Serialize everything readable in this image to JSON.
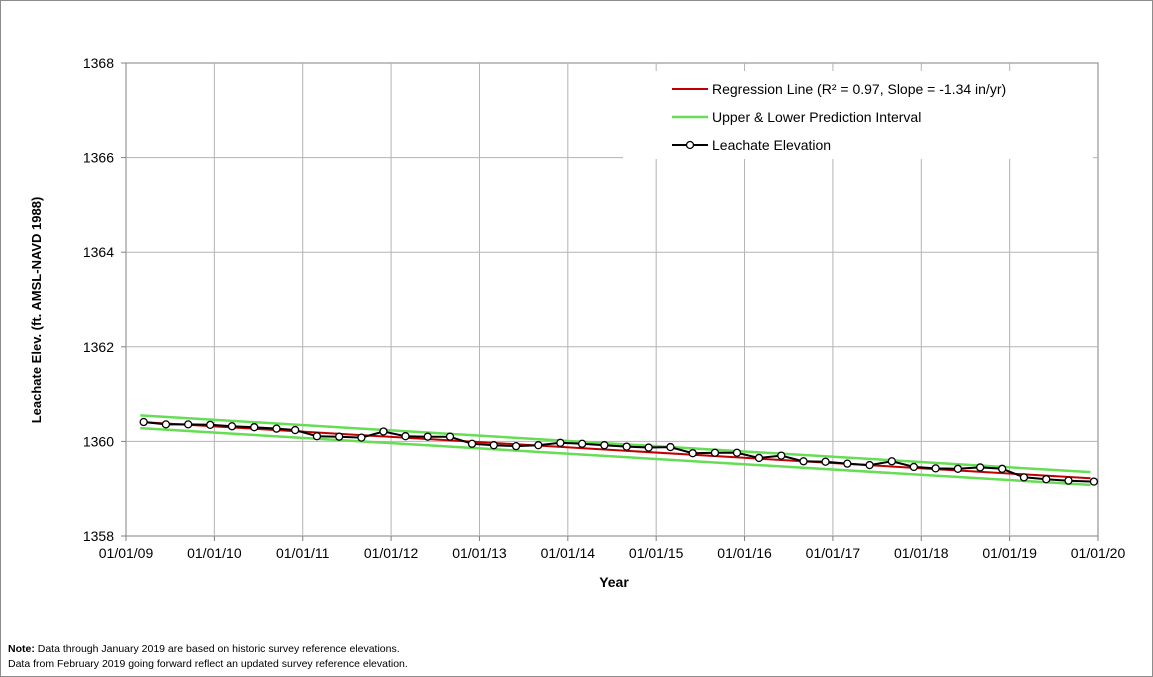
{
  "chart_data": {
    "type": "line",
    "xlabel": "Year",
    "ylabel": "Leachate Elev. (ft. AMSL-NAVD 1988)",
    "x_ticks": [
      "01/01/09",
      "01/01/10",
      "01/01/11",
      "01/01/12",
      "01/01/13",
      "01/01/14",
      "01/01/15",
      "01/01/16",
      "01/01/17",
      "01/01/18",
      "01/01/19",
      "01/01/20"
    ],
    "xlim": [
      "2009-01-01",
      "2020-01-01"
    ],
    "y_ticks": [
      1358,
      1360,
      1362,
      1364,
      1366,
      1368
    ],
    "ylim": [
      1358,
      1368
    ],
    "grid": true,
    "legend_position": "top-right",
    "legend": {
      "regression": "Regression Line (R² = 0.97, Slope = -1.34 in/yr)",
      "interval": "Upper & Lower Prediction Interval",
      "leachate": "Leachate Elevation"
    },
    "colors": {
      "regression": "#c00000",
      "interval": "#66dd55",
      "leachate": "#000000",
      "grid": "#b3b3b3",
      "axis": "#808080"
    },
    "series": [
      {
        "name": "Regression Line (R² = 0.97, Slope = -1.34 in/yr)",
        "x": [
          "2009-03-01",
          "2019-12-01"
        ],
        "y": [
          1360.41,
          1359.22
        ]
      },
      {
        "name": "Upper & Lower Prediction Interval",
        "upper": {
          "x": [
            "2009-03-01",
            "2019-12-01"
          ],
          "y": [
            1360.55,
            1359.35
          ]
        },
        "lower": {
          "x": [
            "2009-03-01",
            "2019-12-01"
          ],
          "y": [
            1360.28,
            1359.08
          ]
        }
      },
      {
        "name": "Leachate Elevation",
        "x": [
          "2009-03-15",
          "2009-06-15",
          "2009-09-15",
          "2009-12-15",
          "2010-03-15",
          "2010-06-15",
          "2010-09-15",
          "2010-12-01",
          "2011-03-01",
          "2011-06-01",
          "2011-09-01",
          "2011-12-01",
          "2012-03-01",
          "2012-06-01",
          "2012-09-01",
          "2012-12-01",
          "2013-03-01",
          "2013-06-01",
          "2013-09-01",
          "2013-12-01",
          "2014-03-01",
          "2014-06-01",
          "2014-09-01",
          "2014-12-01",
          "2015-03-01",
          "2015-06-01",
          "2015-09-01",
          "2015-12-01",
          "2016-03-01",
          "2016-06-01",
          "2016-09-01",
          "2016-12-01",
          "2017-03-01",
          "2017-06-01",
          "2017-09-01",
          "2017-12-01",
          "2018-03-01",
          "2018-06-01",
          "2018-09-01",
          "2018-12-01",
          "2019-03-01",
          "2019-06-01",
          "2019-09-01",
          "2019-12-15"
        ],
        "y": [
          1360.41,
          1360.36,
          1360.36,
          1360.35,
          1360.32,
          1360.3,
          1360.27,
          1360.24,
          1360.11,
          1360.1,
          1360.08,
          1360.21,
          1360.11,
          1360.1,
          1360.1,
          1359.95,
          1359.92,
          1359.9,
          1359.92,
          1359.97,
          1359.95,
          1359.92,
          1359.89,
          1359.87,
          1359.88,
          1359.75,
          1359.76,
          1359.76,
          1359.65,
          1359.7,
          1359.58,
          1359.57,
          1359.53,
          1359.5,
          1359.58,
          1359.46,
          1359.43,
          1359.42,
          1359.45,
          1359.42,
          1359.24,
          1359.2,
          1359.17,
          1359.15
        ]
      }
    ]
  },
  "note": {
    "label": "Note:",
    "line1": " Data through January 2019 are based on historic survey reference elevations.",
    "line2": "Data from February 2019 going forward reflect an updated survey reference elevation."
  }
}
